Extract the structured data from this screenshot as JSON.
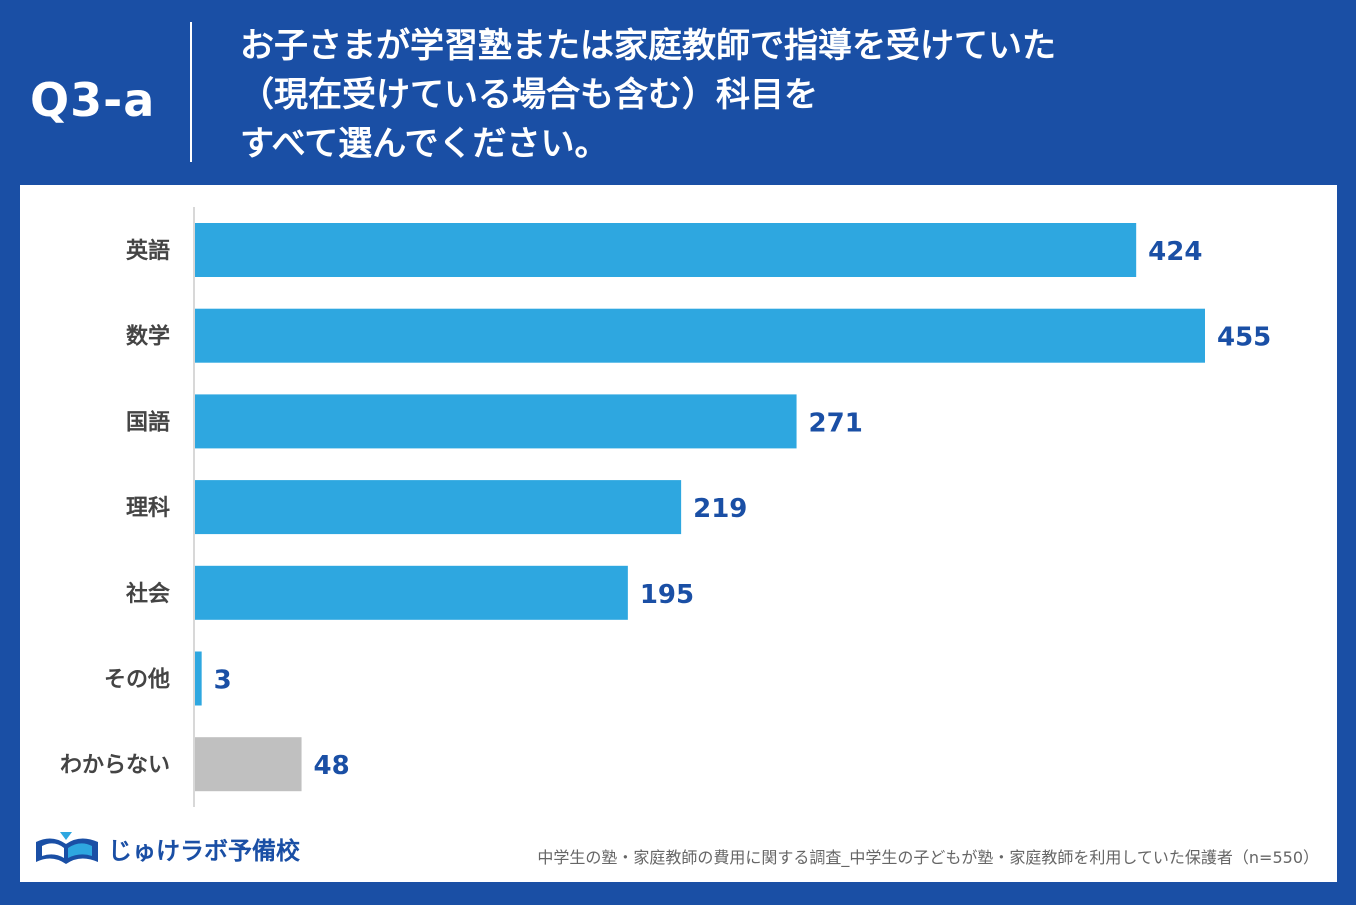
{
  "header": {
    "qlabel": "Q3-a",
    "question_lines": [
      "お子さまが学習塾または家庭教師で指導を受けていた",
      "（現在受けている場合も含む）科目を",
      "すべて選んでください。"
    ]
  },
  "chart_data": {
    "type": "bar",
    "orientation": "horizontal",
    "categories": [
      "英語",
      "数学",
      "国語",
      "理科",
      "社会",
      "その他",
      "わからない"
    ],
    "values": [
      424,
      455,
      271,
      219,
      195,
      3,
      48
    ],
    "xlim": [
      0,
      455
    ],
    "colors": [
      "#2ea7e0",
      "#2ea7e0",
      "#2ea7e0",
      "#2ea7e0",
      "#2ea7e0",
      "#2ea7e0",
      "#c0c0c0"
    ],
    "label_color": "#1a4fa5",
    "title": "",
    "xlabel": "",
    "ylabel": "",
    "grid": false
  },
  "footer": {
    "brand": "じゅけラボ予備校",
    "brand_color": "#1a4fa5",
    "source": "中学生の塾・家庭教師の費用に関する調査_中学生の子どもが塾・家庭教師を利用していた保護者（n=550）"
  }
}
